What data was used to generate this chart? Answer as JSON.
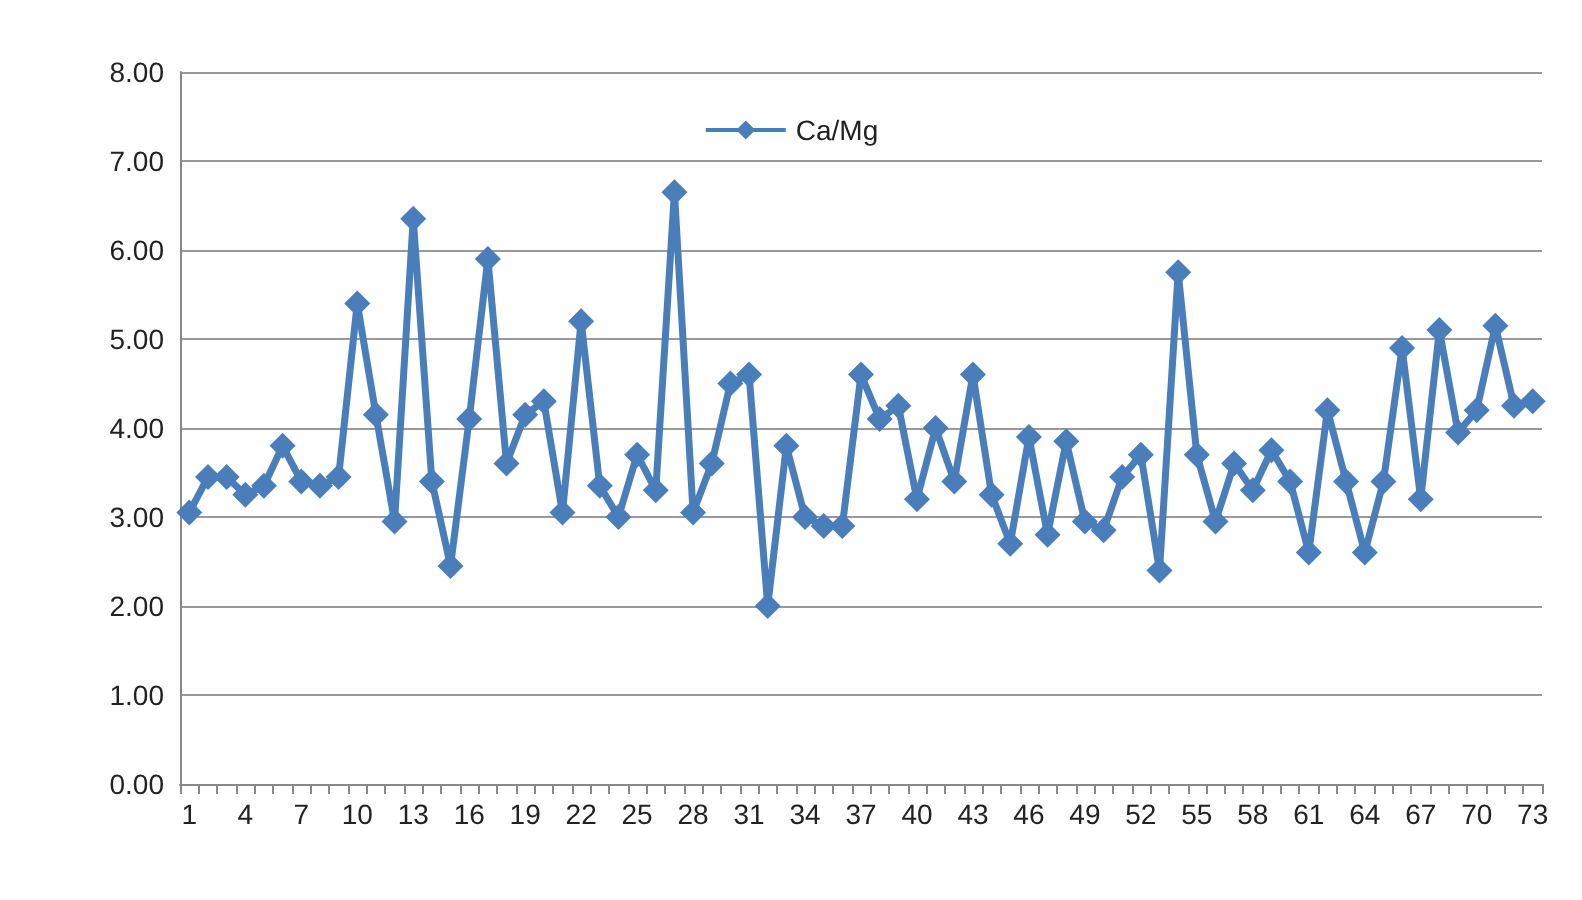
{
  "chart_data": {
    "type": "line",
    "categories": [
      "1",
      null,
      null,
      "4",
      null,
      null,
      "7",
      null,
      null,
      "10",
      null,
      null,
      "13",
      null,
      null,
      "16",
      null,
      null,
      "19",
      null,
      null,
      "22",
      null,
      null,
      "25",
      null,
      null,
      "28",
      null,
      null,
      "31",
      null,
      null,
      "34",
      null,
      null,
      "37",
      null,
      null,
      "40",
      null,
      null,
      "43",
      null,
      null,
      "46",
      null,
      null,
      "49",
      null,
      null,
      "52",
      null,
      null,
      "55",
      null,
      null,
      "58",
      null,
      null,
      "61",
      null,
      null,
      "64",
      null,
      null,
      "67",
      null,
      null,
      "70",
      null,
      null,
      "73"
    ],
    "series": [
      {
        "name": "Ca/Mg",
        "color": "#4a7ebb",
        "values": [
          3.05,
          3.45,
          3.45,
          3.25,
          3.35,
          3.8,
          3.4,
          3.35,
          3.45,
          5.4,
          4.15,
          2.95,
          6.35,
          3.4,
          2.45,
          4.1,
          5.9,
          3.6,
          4.15,
          4.3,
          3.05,
          5.2,
          3.35,
          3.0,
          3.7,
          3.3,
          6.65,
          3.05,
          3.6,
          4.5,
          4.6,
          2.0,
          3.8,
          3.0,
          2.9,
          2.9,
          4.6,
          4.1,
          4.25,
          3.2,
          4.0,
          3.4,
          4.6,
          3.25,
          2.7,
          3.9,
          2.8,
          3.85,
          2.95,
          2.85,
          3.45,
          3.7,
          2.4,
          5.75,
          3.7,
          2.95,
          3.6,
          3.3,
          3.75,
          3.4,
          2.6,
          4.2,
          3.4,
          2.6,
          3.4,
          4.9,
          3.2,
          5.1,
          3.95,
          4.2,
          5.15,
          4.25,
          4.3
        ]
      }
    ],
    "ylim": [
      0,
      8
    ],
    "yticks": [
      {
        "value": 0,
        "label": "0.00"
      },
      {
        "value": 1,
        "label": "1.00"
      },
      {
        "value": 2,
        "label": "2.00"
      },
      {
        "value": 3,
        "label": "3.00"
      },
      {
        "value": 4,
        "label": "4.00"
      },
      {
        "value": 5,
        "label": "5.00"
      },
      {
        "value": 6,
        "label": "6.00"
      },
      {
        "value": 7,
        "label": "7.00"
      },
      {
        "value": 8,
        "label": "8.00"
      }
    ],
    "grid": "y",
    "legend": "top",
    "marker": "diamond",
    "line_style": "solid"
  }
}
